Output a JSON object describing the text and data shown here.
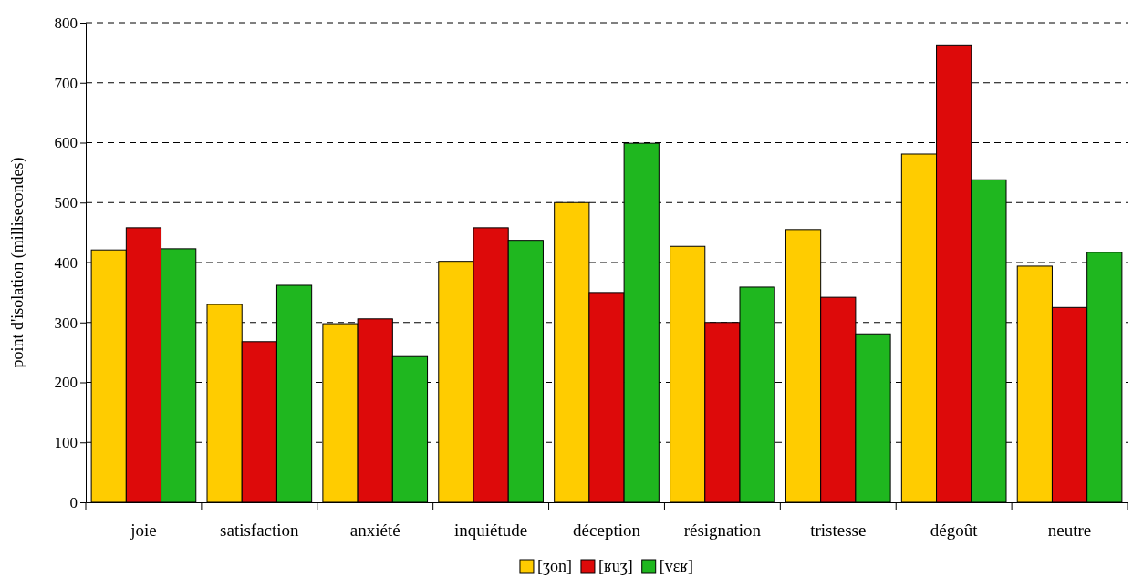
{
  "chart_data": {
    "type": "bar",
    "ylabel": "point d'isolation (millisecondes)",
    "categories": [
      "joie",
      "satisfaction",
      "anxiété",
      "inquiétude",
      "déception",
      "résignation",
      "tristesse",
      "dégoût",
      "neutre"
    ],
    "series": [
      {
        "name": "[ʒon]",
        "color": "#ffcc00",
        "values": [
          421,
          330,
          298,
          402,
          500,
          427,
          455,
          581,
          394
        ]
      },
      {
        "name": "[ʁuʒ]",
        "color": "#dd0a0a",
        "values": [
          458,
          268,
          306,
          458,
          350,
          300,
          342,
          763,
          325
        ]
      },
      {
        "name": "[vɛʁ]",
        "color": "#1fb71f",
        "values": [
          423,
          362,
          243,
          437,
          599,
          359,
          281,
          538,
          417
        ]
      }
    ],
    "ylim": [
      0,
      800
    ],
    "yticks": [
      0,
      100,
      200,
      300,
      400,
      500,
      600,
      700,
      800
    ],
    "grid": "y",
    "legend": "bottom"
  }
}
